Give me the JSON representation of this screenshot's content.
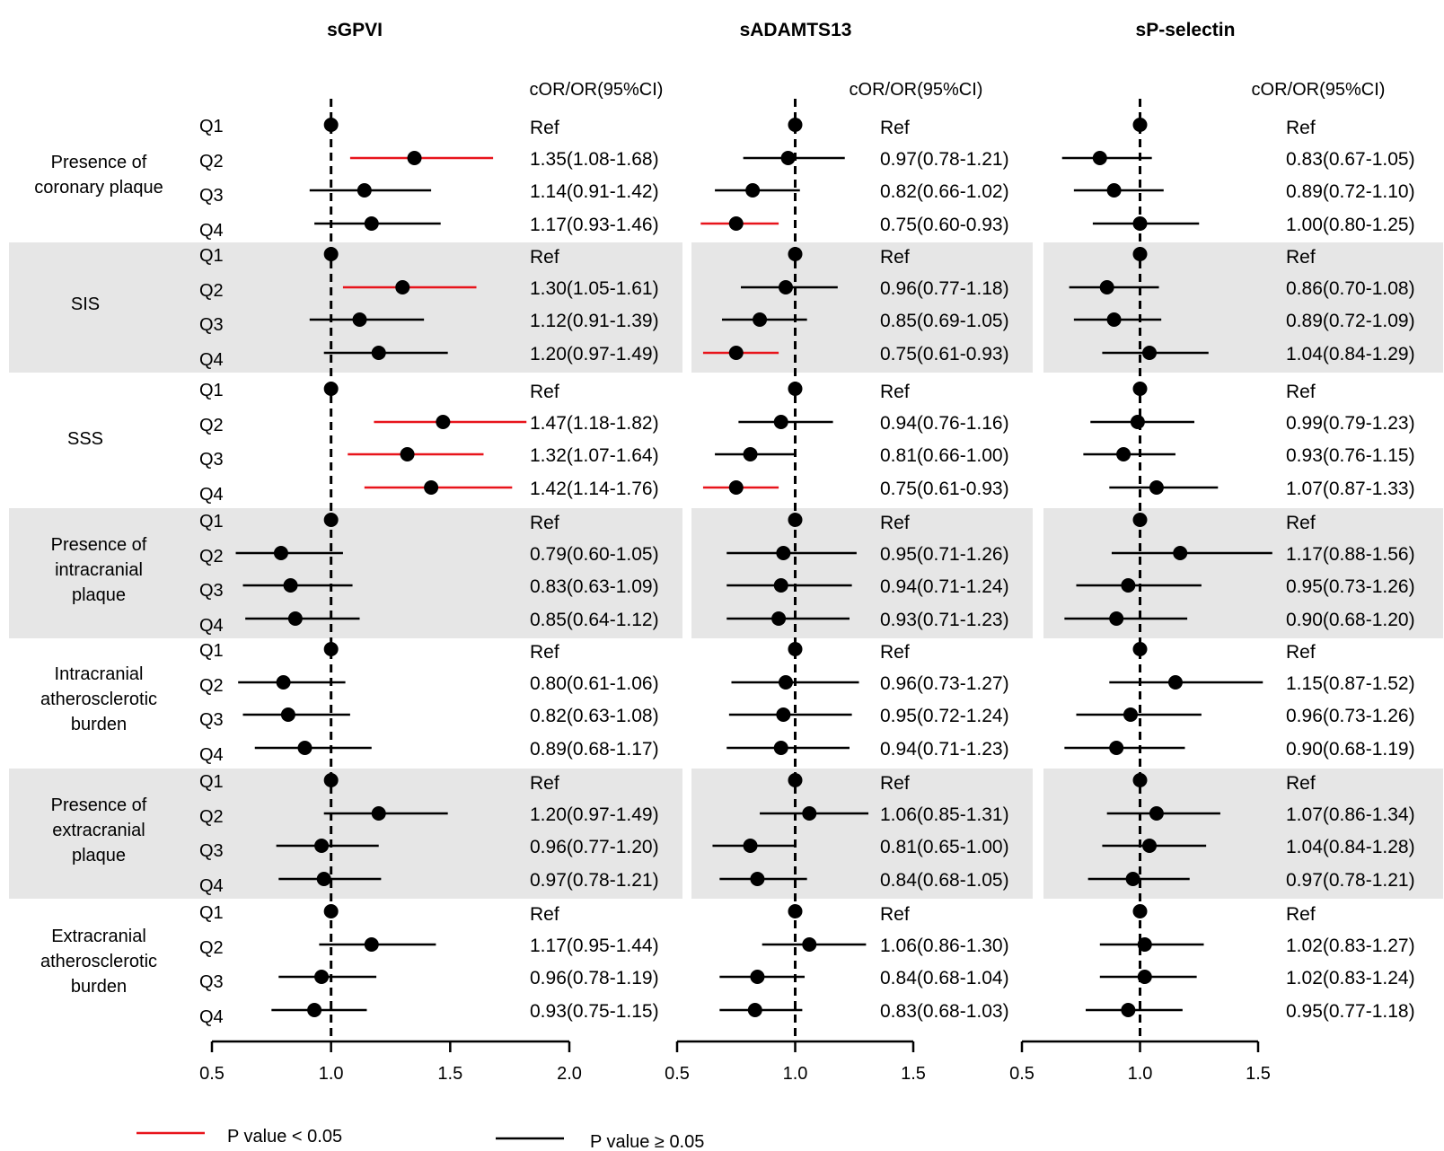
{
  "chart_data": {
    "type": "forest",
    "row_labels": [
      "Q1",
      "Q2",
      "Q3",
      "Q4"
    ],
    "outcomes": [
      {
        "label": [
          "Presence of",
          "coronary plaque"
        ],
        "shaded": false
      },
      {
        "label": [
          "SIS"
        ],
        "shaded": true
      },
      {
        "label": [
          "SSS"
        ],
        "shaded": false
      },
      {
        "label": [
          "Presence of",
          "intracranial",
          "plaque"
        ],
        "shaded": true
      },
      {
        "label": [
          "Intracranial",
          "atherosclerotic",
          "burden"
        ],
        "shaded": false
      },
      {
        "label": [
          "Presence of",
          "extracranial",
          "plaque"
        ],
        "shaded": true
      },
      {
        "label": [
          "Extracranial",
          "atherosclerotic",
          "burden"
        ],
        "shaded": false
      }
    ],
    "reference_line": 1.0,
    "ci_header": "cOR/OR(95%CI)",
    "panels": [
      {
        "title": "sGPVI",
        "xlim": [
          0.5,
          2.0
        ],
        "ticks": [
          "0.5",
          "1.0",
          "1.5",
          "2.0"
        ],
        "rows": [
          [
            {
              "or": 1.0,
              "text": "Ref"
            },
            {
              "or": 1.35,
              "lo": 1.08,
              "hi": 1.68,
              "sig": true,
              "text": "1.35(1.08-1.68)"
            },
            {
              "or": 1.14,
              "lo": 0.91,
              "hi": 1.42,
              "sig": false,
              "text": "1.14(0.91-1.42)"
            },
            {
              "or": 1.17,
              "lo": 0.93,
              "hi": 1.46,
              "sig": false,
              "text": "1.17(0.93-1.46)"
            }
          ],
          [
            {
              "or": 1.0,
              "text": "Ref"
            },
            {
              "or": 1.3,
              "lo": 1.05,
              "hi": 1.61,
              "sig": true,
              "text": "1.30(1.05-1.61)"
            },
            {
              "or": 1.12,
              "lo": 0.91,
              "hi": 1.39,
              "sig": false,
              "text": "1.12(0.91-1.39)"
            },
            {
              "or": 1.2,
              "lo": 0.97,
              "hi": 1.49,
              "sig": false,
              "text": "1.20(0.97-1.49)"
            }
          ],
          [
            {
              "or": 1.0,
              "text": "Ref"
            },
            {
              "or": 1.47,
              "lo": 1.18,
              "hi": 1.82,
              "sig": true,
              "text": "1.47(1.18-1.82)"
            },
            {
              "or": 1.32,
              "lo": 1.07,
              "hi": 1.64,
              "sig": true,
              "text": "1.32(1.07-1.64)"
            },
            {
              "or": 1.42,
              "lo": 1.14,
              "hi": 1.76,
              "sig": true,
              "text": "1.42(1.14-1.76)"
            }
          ],
          [
            {
              "or": 1.0,
              "text": "Ref"
            },
            {
              "or": 0.79,
              "lo": 0.6,
              "hi": 1.05,
              "sig": false,
              "text": "0.79(0.60-1.05)"
            },
            {
              "or": 0.83,
              "lo": 0.63,
              "hi": 1.09,
              "sig": false,
              "text": "0.83(0.63-1.09)"
            },
            {
              "or": 0.85,
              "lo": 0.64,
              "hi": 1.12,
              "sig": false,
              "text": "0.85(0.64-1.12)"
            }
          ],
          [
            {
              "or": 1.0,
              "text": "Ref"
            },
            {
              "or": 0.8,
              "lo": 0.61,
              "hi": 1.06,
              "sig": false,
              "text": "0.80(0.61-1.06)"
            },
            {
              "or": 0.82,
              "lo": 0.63,
              "hi": 1.08,
              "sig": false,
              "text": "0.82(0.63-1.08)"
            },
            {
              "or": 0.89,
              "lo": 0.68,
              "hi": 1.17,
              "sig": false,
              "text": "0.89(0.68-1.17)"
            }
          ],
          [
            {
              "or": 1.0,
              "text": "Ref"
            },
            {
              "or": 1.2,
              "lo": 0.97,
              "hi": 1.49,
              "sig": false,
              "text": "1.20(0.97-1.49)"
            },
            {
              "or": 0.96,
              "lo": 0.77,
              "hi": 1.2,
              "sig": false,
              "text": "0.96(0.77-1.20)"
            },
            {
              "or": 0.97,
              "lo": 0.78,
              "hi": 1.21,
              "sig": false,
              "text": "0.97(0.78-1.21)"
            }
          ],
          [
            {
              "or": 1.0,
              "text": "Ref"
            },
            {
              "or": 1.17,
              "lo": 0.95,
              "hi": 1.44,
              "sig": false,
              "text": "1.17(0.95-1.44)"
            },
            {
              "or": 0.96,
              "lo": 0.78,
              "hi": 1.19,
              "sig": false,
              "text": "0.96(0.78-1.19)"
            },
            {
              "or": 0.93,
              "lo": 0.75,
              "hi": 1.15,
              "sig": false,
              "text": "0.93(0.75-1.15)"
            }
          ]
        ]
      },
      {
        "title": "sADAMTS13",
        "xlim": [
          0.5,
          1.5
        ],
        "ticks": [
          "0.5",
          "1.0",
          "1.5"
        ],
        "rows": [
          [
            {
              "or": 1.0,
              "text": "Ref"
            },
            {
              "or": 0.97,
              "lo": 0.78,
              "hi": 1.21,
              "sig": false,
              "text": "0.97(0.78-1.21)"
            },
            {
              "or": 0.82,
              "lo": 0.66,
              "hi": 1.02,
              "sig": false,
              "text": "0.82(0.66-1.02)"
            },
            {
              "or": 0.75,
              "lo": 0.6,
              "hi": 0.93,
              "sig": true,
              "text": "0.75(0.60-0.93)"
            }
          ],
          [
            {
              "or": 1.0,
              "text": "Ref"
            },
            {
              "or": 0.96,
              "lo": 0.77,
              "hi": 1.18,
              "sig": false,
              "text": "0.96(0.77-1.18)"
            },
            {
              "or": 0.85,
              "lo": 0.69,
              "hi": 1.05,
              "sig": false,
              "text": "0.85(0.69-1.05)"
            },
            {
              "or": 0.75,
              "lo": 0.61,
              "hi": 0.93,
              "sig": true,
              "text": "0.75(0.61-0.93)"
            }
          ],
          [
            {
              "or": 1.0,
              "text": "Ref"
            },
            {
              "or": 0.94,
              "lo": 0.76,
              "hi": 1.16,
              "sig": false,
              "text": "0.94(0.76-1.16)"
            },
            {
              "or": 0.81,
              "lo": 0.66,
              "hi": 1.0,
              "sig": false,
              "text": "0.81(0.66-1.00)"
            },
            {
              "or": 0.75,
              "lo": 0.61,
              "hi": 0.93,
              "sig": true,
              "text": "0.75(0.61-0.93)"
            }
          ],
          [
            {
              "or": 1.0,
              "text": "Ref"
            },
            {
              "or": 0.95,
              "lo": 0.71,
              "hi": 1.26,
              "sig": false,
              "text": "0.95(0.71-1.26)"
            },
            {
              "or": 0.94,
              "lo": 0.71,
              "hi": 1.24,
              "sig": false,
              "text": "0.94(0.71-1.24)"
            },
            {
              "or": 0.93,
              "lo": 0.71,
              "hi": 1.23,
              "sig": false,
              "text": "0.93(0.71-1.23)"
            }
          ],
          [
            {
              "or": 1.0,
              "text": "Ref"
            },
            {
              "or": 0.96,
              "lo": 0.73,
              "hi": 1.27,
              "sig": false,
              "text": "0.96(0.73-1.27)"
            },
            {
              "or": 0.95,
              "lo": 0.72,
              "hi": 1.24,
              "sig": false,
              "text": "0.95(0.72-1.24)"
            },
            {
              "or": 0.94,
              "lo": 0.71,
              "hi": 1.23,
              "sig": false,
              "text": "0.94(0.71-1.23)"
            }
          ],
          [
            {
              "or": 1.0,
              "text": "Ref"
            },
            {
              "or": 1.06,
              "lo": 0.85,
              "hi": 1.31,
              "sig": false,
              "text": "1.06(0.85-1.31)"
            },
            {
              "or": 0.81,
              "lo": 0.65,
              "hi": 1.0,
              "sig": false,
              "text": "0.81(0.65-1.00)"
            },
            {
              "or": 0.84,
              "lo": 0.68,
              "hi": 1.05,
              "sig": false,
              "text": "0.84(0.68-1.05)"
            }
          ],
          [
            {
              "or": 1.0,
              "text": "Ref"
            },
            {
              "or": 1.06,
              "lo": 0.86,
              "hi": 1.3,
              "sig": false,
              "text": "1.06(0.86-1.30)"
            },
            {
              "or": 0.84,
              "lo": 0.68,
              "hi": 1.04,
              "sig": false,
              "text": "0.84(0.68-1.04)"
            },
            {
              "or": 0.83,
              "lo": 0.68,
              "hi": 1.03,
              "sig": false,
              "text": "0.83(0.68-1.03)"
            }
          ]
        ]
      },
      {
        "title": "sP-selectin",
        "xlim": [
          0.5,
          1.5
        ],
        "ticks": [
          "0.5",
          "1.0",
          "1.5"
        ],
        "rows": [
          [
            {
              "or": 1.0,
              "text": "Ref"
            },
            {
              "or": 0.83,
              "lo": 0.67,
              "hi": 1.05,
              "sig": false,
              "text": "0.83(0.67-1.05)"
            },
            {
              "or": 0.89,
              "lo": 0.72,
              "hi": 1.1,
              "sig": false,
              "text": "0.89(0.72-1.10)"
            },
            {
              "or": 1.0,
              "lo": 0.8,
              "hi": 1.25,
              "sig": false,
              "text": "1.00(0.80-1.25)"
            }
          ],
          [
            {
              "or": 1.0,
              "text": "Ref"
            },
            {
              "or": 0.86,
              "lo": 0.7,
              "hi": 1.08,
              "sig": false,
              "text": "0.86(0.70-1.08)"
            },
            {
              "or": 0.89,
              "lo": 0.72,
              "hi": 1.09,
              "sig": false,
              "text": "0.89(0.72-1.09)"
            },
            {
              "or": 1.04,
              "lo": 0.84,
              "hi": 1.29,
              "sig": false,
              "text": "1.04(0.84-1.29)"
            }
          ],
          [
            {
              "or": 1.0,
              "text": "Ref"
            },
            {
              "or": 0.99,
              "lo": 0.79,
              "hi": 1.23,
              "sig": false,
              "text": "0.99(0.79-1.23)"
            },
            {
              "or": 0.93,
              "lo": 0.76,
              "hi": 1.15,
              "sig": false,
              "text": "0.93(0.76-1.15)"
            },
            {
              "or": 1.07,
              "lo": 0.87,
              "hi": 1.33,
              "sig": false,
              "text": "1.07(0.87-1.33)"
            }
          ],
          [
            {
              "or": 1.0,
              "text": "Ref"
            },
            {
              "or": 1.17,
              "lo": 0.88,
              "hi": 1.56,
              "sig": false,
              "text": "1.17(0.88-1.56)"
            },
            {
              "or": 0.95,
              "lo": 0.73,
              "hi": 1.26,
              "sig": false,
              "text": "0.95(0.73-1.26)"
            },
            {
              "or": 0.9,
              "lo": 0.68,
              "hi": 1.2,
              "sig": false,
              "text": "0.90(0.68-1.20)"
            }
          ],
          [
            {
              "or": 1.0,
              "text": "Ref"
            },
            {
              "or": 1.15,
              "lo": 0.87,
              "hi": 1.52,
              "sig": false,
              "text": "1.15(0.87-1.52)"
            },
            {
              "or": 0.96,
              "lo": 0.73,
              "hi": 1.26,
              "sig": false,
              "text": "0.96(0.73-1.26)"
            },
            {
              "or": 0.9,
              "lo": 0.68,
              "hi": 1.19,
              "sig": false,
              "text": "0.90(0.68-1.19)"
            }
          ],
          [
            {
              "or": 1.0,
              "text": "Ref"
            },
            {
              "or": 1.07,
              "lo": 0.86,
              "hi": 1.34,
              "sig": false,
              "text": "1.07(0.86-1.34)"
            },
            {
              "or": 1.04,
              "lo": 0.84,
              "hi": 1.28,
              "sig": false,
              "text": "1.04(0.84-1.28)"
            },
            {
              "or": 0.97,
              "lo": 0.78,
              "hi": 1.21,
              "sig": false,
              "text": "0.97(0.78-1.21)"
            }
          ],
          [
            {
              "or": 1.0,
              "text": "Ref"
            },
            {
              "or": 1.02,
              "lo": 0.83,
              "hi": 1.27,
              "sig": false,
              "text": "1.02(0.83-1.27)"
            },
            {
              "or": 1.02,
              "lo": 0.83,
              "hi": 1.24,
              "sig": false,
              "text": "1.02(0.83-1.24)"
            },
            {
              "or": 0.95,
              "lo": 0.77,
              "hi": 1.18,
              "sig": false,
              "text": "0.95(0.77-1.18)"
            }
          ]
        ]
      }
    ],
    "legend": [
      {
        "label": "P value < 0.05",
        "color": "#e8141b"
      },
      {
        "label": "P value ≥ 0.05",
        "color": "#000000"
      }
    ]
  }
}
